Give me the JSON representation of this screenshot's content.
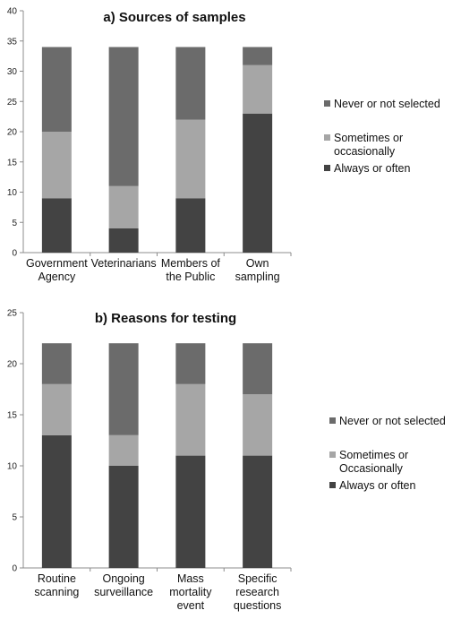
{
  "colors": {
    "never": "#6b6b6b",
    "sometimes": "#a6a6a6",
    "always": "#434343",
    "axis": "#8c8c8c"
  },
  "chart_data": [
    {
      "type": "bar",
      "stacked": true,
      "title": "a) Sources of samples",
      "categories": [
        [
          "Government",
          "Agency"
        ],
        [
          "Veterinarians"
        ],
        [
          "Members of",
          "the Public"
        ],
        [
          "Own",
          "sampling"
        ]
      ],
      "series": [
        {
          "name": "Always or often",
          "values": [
            9,
            4,
            9,
            23
          ],
          "color_key": "always"
        },
        {
          "name": "Sometimes or occasionally",
          "legend_lines": [
            "Sometimes or",
            "occasionally"
          ],
          "values": [
            11,
            7,
            13,
            8
          ],
          "color_key": "sometimes"
        },
        {
          "name": "Never or not selected",
          "values": [
            14,
            23,
            12,
            3
          ],
          "color_key": "never"
        }
      ],
      "ylim": [
        0,
        40
      ],
      "yticks": [
        0,
        5,
        10,
        15,
        20,
        25,
        30,
        35,
        40
      ],
      "grid": false,
      "legend_position": "right"
    },
    {
      "type": "bar",
      "stacked": true,
      "title": "b) Reasons for testing",
      "categories": [
        [
          "Routine",
          "scanning"
        ],
        [
          "Ongoing",
          "surveillance"
        ],
        [
          "Mass",
          "mortality",
          "event"
        ],
        [
          "Specific",
          "research",
          "questions"
        ]
      ],
      "series": [
        {
          "name": "Always or often",
          "values": [
            13,
            10,
            11,
            11
          ],
          "color_key": "always"
        },
        {
          "name": "Sometimes or Occasionally",
          "legend_lines": [
            "Sometimes or",
            "Occasionally"
          ],
          "values": [
            5,
            3,
            7,
            6
          ],
          "color_key": "sometimes"
        },
        {
          "name": "Never or not selected",
          "values": [
            4,
            9,
            4,
            5
          ],
          "color_key": "never"
        }
      ],
      "ylim": [
        0,
        25
      ],
      "yticks": [
        0,
        5,
        10,
        15,
        20,
        25
      ],
      "grid": false,
      "legend_position": "right"
    }
  ]
}
